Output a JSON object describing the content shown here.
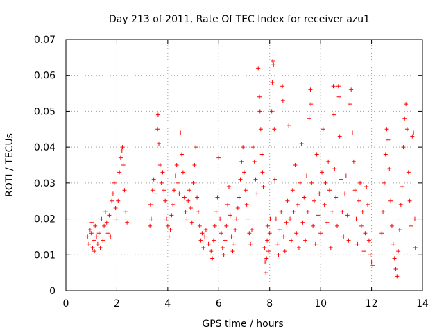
{
  "chart_data": {
    "type": "scatter",
    "title": "Day 213 of 2011, Rate Of TEC Index for receiver azu1",
    "xlabel": "GPS time / hours",
    "ylabel": "ROTI / TECUs",
    "xlim": [
      0,
      14
    ],
    "ylim": [
      0,
      0.07
    ],
    "x_ticks": [
      "0",
      "2",
      "4",
      "6",
      "8",
      "10",
      "12",
      "14"
    ],
    "y_ticks": [
      "0",
      "0.01",
      "0.02",
      "0.03",
      "0.04",
      "0.05",
      "0.06",
      "0.07"
    ],
    "grid": true,
    "legend": "none",
    "marker": "plus",
    "color": "#ff0000",
    "series": [
      {
        "values": [
          [
            0.85,
            0.015
          ],
          [
            0.9,
            0.013
          ],
          [
            0.95,
            0.017
          ],
          [
            1.0,
            0.016
          ],
          [
            1.02,
            0.019
          ],
          [
            1.05,
            0.012
          ],
          [
            1.1,
            0.014
          ],
          [
            1.12,
            0.011
          ],
          [
            1.15,
            0.018
          ],
          [
            1.2,
            0.015
          ],
          [
            1.25,
            0.013
          ],
          [
            1.3,
            0.016
          ],
          [
            1.35,
            0.012
          ],
          [
            1.4,
            0.02
          ],
          [
            1.45,
            0.014
          ],
          [
            1.5,
            0.018
          ],
          [
            1.55,
            0.022
          ],
          [
            1.6,
            0.019
          ],
          [
            1.65,
            0.016
          ],
          [
            1.7,
            0.021
          ],
          [
            1.75,
            0.015
          ],
          [
            1.8,
            0.025
          ],
          [
            1.85,
            0.027
          ],
          [
            1.9,
            0.03
          ],
          [
            1.95,
            0.023
          ],
          [
            2.0,
            0.02
          ],
          [
            2.05,
            0.025
          ],
          [
            2.1,
            0.033
          ],
          [
            2.15,
            0.037
          ],
          [
            2.2,
            0.039
          ],
          [
            2.22,
            0.04
          ],
          [
            2.25,
            0.035
          ],
          [
            2.3,
            0.028
          ],
          [
            2.35,
            0.022
          ],
          [
            2.4,
            0.019
          ],
          [
            3.3,
            0.018
          ],
          [
            3.32,
            0.024
          ],
          [
            3.35,
            0.02
          ],
          [
            3.4,
            0.028
          ],
          [
            3.45,
            0.031
          ],
          [
            3.5,
            0.027
          ],
          [
            3.6,
            0.045
          ],
          [
            3.62,
            0.049
          ],
          [
            3.65,
            0.041
          ],
          [
            3.7,
            0.035
          ],
          [
            3.75,
            0.03
          ],
          [
            3.8,
            0.033
          ],
          [
            3.85,
            0.028
          ],
          [
            3.9,
            0.025
          ],
          [
            3.95,
            0.02
          ],
          [
            4.0,
            0.018
          ],
          [
            4.05,
            0.015
          ],
          [
            4.1,
            0.017
          ],
          [
            4.15,
            0.021
          ],
          [
            4.2,
            0.024
          ],
          [
            4.25,
            0.028
          ],
          [
            4.3,
            0.032
          ],
          [
            4.35,
            0.035
          ],
          [
            4.4,
            0.03
          ],
          [
            4.45,
            0.027
          ],
          [
            4.5,
            0.044
          ],
          [
            4.55,
            0.038
          ],
          [
            4.6,
            0.033
          ],
          [
            4.65,
            0.026
          ],
          [
            4.7,
            0.022
          ],
          [
            4.75,
            0.02
          ],
          [
            4.8,
            0.025
          ],
          [
            4.85,
            0.028
          ],
          [
            4.9,
            0.023
          ],
          [
            4.95,
            0.019
          ],
          [
            5.0,
            0.03
          ],
          [
            5.05,
            0.035
          ],
          [
            5.1,
            0.04
          ],
          [
            5.15,
            0.026
          ],
          [
            5.2,
            0.022
          ],
          [
            5.25,
            0.018
          ],
          [
            5.3,
            0.014
          ],
          [
            5.35,
            0.016
          ],
          [
            5.4,
            0.012
          ],
          [
            5.45,
            0.015
          ],
          [
            5.5,
            0.017
          ],
          [
            5.6,
            0.013
          ],
          [
            5.7,
            0.011
          ],
          [
            5.75,
            0.009
          ],
          [
            5.8,
            0.014
          ],
          [
            5.85,
            0.018
          ],
          [
            5.9,
            0.022
          ],
          [
            5.95,
            0.026
          ],
          [
            6.0,
            0.037
          ],
          [
            6.05,
            0.02
          ],
          [
            6.1,
            0.016
          ],
          [
            6.15,
            0.012
          ],
          [
            6.2,
            0.01
          ],
          [
            6.25,
            0.014
          ],
          [
            6.3,
            0.018
          ],
          [
            6.35,
            0.024
          ],
          [
            6.4,
            0.029
          ],
          [
            6.45,
            0.021
          ],
          [
            6.5,
            0.015
          ],
          [
            6.55,
            0.011
          ],
          [
            6.6,
            0.013
          ],
          [
            6.65,
            0.017
          ],
          [
            6.7,
            0.02
          ],
          [
            6.75,
            0.023
          ],
          [
            6.8,
            0.026
          ],
          [
            6.85,
            0.031
          ],
          [
            6.9,
            0.036
          ],
          [
            6.95,
            0.04
          ],
          [
            7.0,
            0.033
          ],
          [
            7.05,
            0.028
          ],
          [
            7.1,
            0.024
          ],
          [
            7.15,
            0.02
          ],
          [
            7.2,
            0.016
          ],
          [
            7.25,
            0.013
          ],
          [
            7.3,
            0.017
          ],
          [
            7.35,
            0.04
          ],
          [
            7.4,
            0.036
          ],
          [
            7.45,
            0.031
          ],
          [
            7.5,
            0.027
          ],
          [
            7.55,
            0.062
          ],
          [
            7.6,
            0.054
          ],
          [
            7.62,
            0.05
          ],
          [
            7.65,
            0.045
          ],
          [
            7.7,
            0.038
          ],
          [
            7.72,
            0.033
          ],
          [
            7.75,
            0.029
          ],
          [
            7.8,
            0.012
          ],
          [
            7.82,
            0.008
          ],
          [
            7.85,
            0.005
          ],
          [
            7.88,
            0.009
          ],
          [
            7.9,
            0.014
          ],
          [
            7.92,
            0.018
          ],
          [
            7.95,
            0.011
          ],
          [
            8.0,
            0.016
          ],
          [
            8.02,
            0.02
          ],
          [
            8.05,
            0.044
          ],
          [
            8.08,
            0.05
          ],
          [
            8.1,
            0.058
          ],
          [
            8.12,
            0.064
          ],
          [
            8.15,
            0.063
          ],
          [
            8.18,
            0.045
          ],
          [
            8.2,
            0.031
          ],
          [
            8.25,
            0.02
          ],
          [
            8.3,
            0.013
          ],
          [
            8.35,
            0.01
          ],
          [
            8.4,
            0.017
          ],
          [
            8.45,
            0.022
          ],
          [
            8.5,
            0.057
          ],
          [
            8.52,
            0.053
          ],
          [
            8.55,
            0.015
          ],
          [
            8.6,
            0.011
          ],
          [
            8.65,
            0.019
          ],
          [
            8.7,
            0.025
          ],
          [
            8.75,
            0.046
          ],
          [
            8.8,
            0.02
          ],
          [
            8.85,
            0.014
          ],
          [
            8.9,
            0.028
          ],
          [
            8.95,
            0.022
          ],
          [
            9.0,
            0.035
          ],
          [
            9.05,
            0.016
          ],
          [
            9.1,
            0.024
          ],
          [
            9.15,
            0.012
          ],
          [
            9.2,
            0.03
          ],
          [
            9.25,
            0.041
          ],
          [
            9.3,
            0.019
          ],
          [
            9.35,
            0.026
          ],
          [
            9.4,
            0.014
          ],
          [
            9.45,
            0.032
          ],
          [
            9.5,
            0.022
          ],
          [
            9.55,
            0.048
          ],
          [
            9.6,
            0.056
          ],
          [
            9.62,
            0.052
          ],
          [
            9.65,
            0.03
          ],
          [
            9.7,
            0.018
          ],
          [
            9.75,
            0.025
          ],
          [
            9.8,
            0.013
          ],
          [
            9.85,
            0.038
          ],
          [
            9.9,
            0.021
          ],
          [
            9.95,
            0.027
          ],
          [
            10.0,
            0.016
          ],
          [
            10.05,
            0.033
          ],
          [
            10.1,
            0.045
          ],
          [
            10.15,
            0.024
          ],
          [
            10.2,
            0.03
          ],
          [
            10.25,
            0.019
          ],
          [
            10.3,
            0.036
          ],
          [
            10.35,
            0.028
          ],
          [
            10.4,
            0.012
          ],
          [
            10.45,
            0.022
          ],
          [
            10.5,
            0.057
          ],
          [
            10.52,
            0.049
          ],
          [
            10.55,
            0.034
          ],
          [
            10.6,
            0.026
          ],
          [
            10.65,
            0.018
          ],
          [
            10.7,
            0.057
          ],
          [
            10.72,
            0.054
          ],
          [
            10.75,
            0.043
          ],
          [
            10.8,
            0.031
          ],
          [
            10.85,
            0.022
          ],
          [
            10.9,
            0.015
          ],
          [
            10.95,
            0.027
          ],
          [
            11.0,
            0.032
          ],
          [
            11.05,
            0.021
          ],
          [
            11.1,
            0.014
          ],
          [
            11.15,
            0.052
          ],
          [
            11.2,
            0.056
          ],
          [
            11.25,
            0.044
          ],
          [
            11.3,
            0.036
          ],
          [
            11.35,
            0.028
          ],
          [
            11.4,
            0.02
          ],
          [
            11.45,
            0.013
          ],
          [
            11.5,
            0.025
          ],
          [
            11.55,
            0.03
          ],
          [
            11.6,
            0.018
          ],
          [
            11.65,
            0.022
          ],
          [
            11.7,
            0.011
          ],
          [
            11.75,
            0.016
          ],
          [
            11.8,
            0.029
          ],
          [
            11.85,
            0.024
          ],
          [
            11.9,
            0.014
          ],
          [
            11.95,
            0.01
          ],
          [
            12.0,
            0.008
          ],
          [
            12.05,
            0.007
          ],
          [
            12.4,
            0.016
          ],
          [
            12.45,
            0.022
          ],
          [
            12.5,
            0.03
          ],
          [
            12.55,
            0.038
          ],
          [
            12.6,
            0.045
          ],
          [
            12.65,
            0.042
          ],
          [
            12.7,
            0.034
          ],
          [
            12.75,
            0.025
          ],
          [
            12.8,
            0.018
          ],
          [
            12.85,
            0.013
          ],
          [
            12.9,
            0.009
          ],
          [
            12.95,
            0.006
          ],
          [
            13.0,
            0.004
          ],
          [
            13.05,
            0.011
          ],
          [
            13.1,
            0.017
          ],
          [
            13.15,
            0.024
          ],
          [
            13.2,
            0.029
          ],
          [
            13.25,
            0.04
          ],
          [
            13.3,
            0.048
          ],
          [
            13.35,
            0.052
          ],
          [
            13.4,
            0.045
          ],
          [
            13.45,
            0.033
          ],
          [
            13.5,
            0.025
          ],
          [
            13.55,
            0.018
          ],
          [
            13.6,
            0.043
          ],
          [
            13.65,
            0.044
          ],
          [
            13.7,
            0.02
          ],
          [
            13.72,
            0.012
          ]
        ]
      }
    ]
  }
}
